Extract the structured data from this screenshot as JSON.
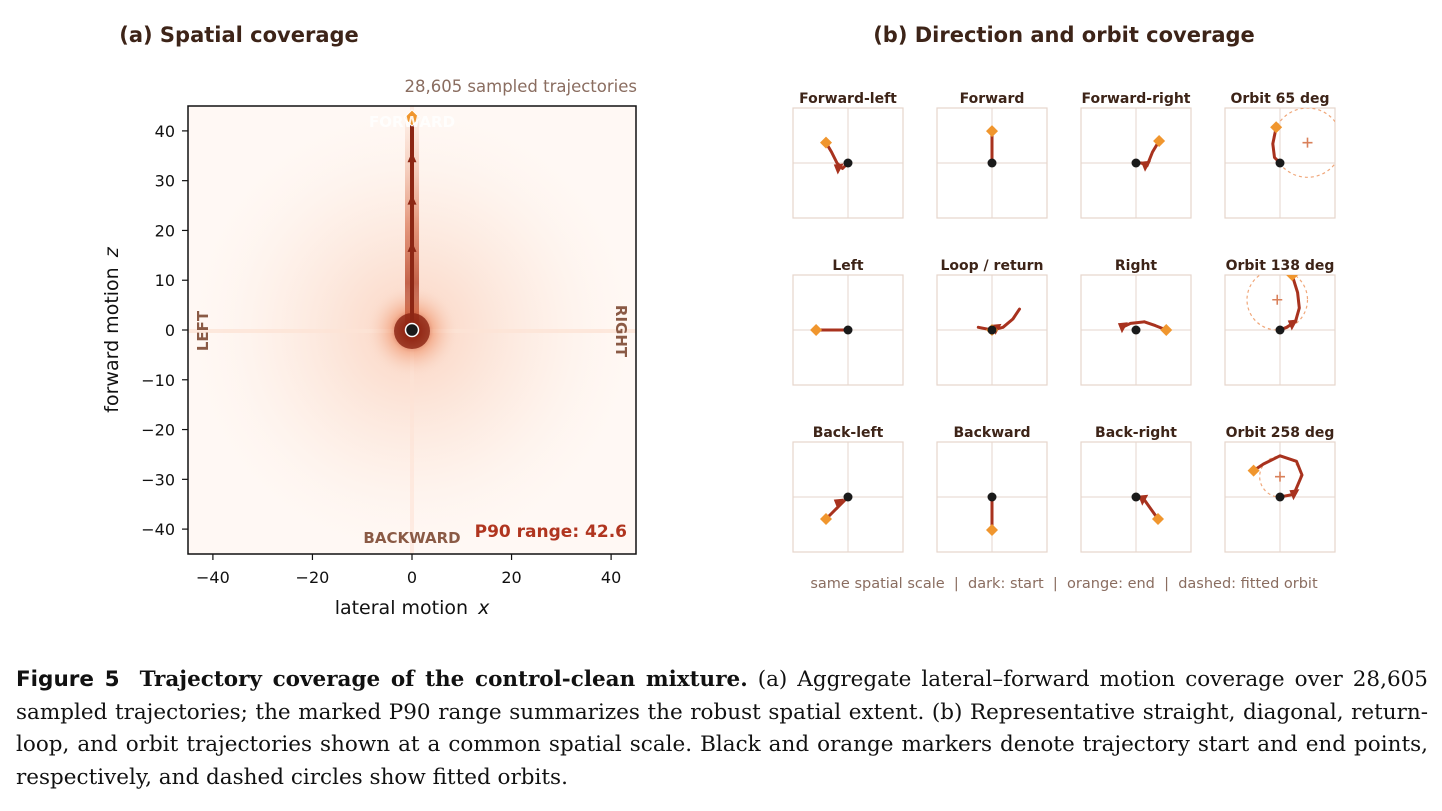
{
  "panel_a": {
    "title": "(a) Spatial coverage",
    "subtitle": "28,605 sampled trajectories",
    "xlabel": "lateral motion",
    "xlabel_var": "x",
    "ylabel": "forward motion",
    "ylabel_var": "z",
    "labels": {
      "forward": "FORWARD",
      "backward": "BACKWARD",
      "left": "LEFT",
      "right": "RIGHT"
    },
    "p90_text": "P90 range: 42.6"
  },
  "panel_b": {
    "title": "(b) Direction and orbit coverage",
    "footer": "same spatial scale  |  dark: start  |  orange: end  |  dashed: fitted orbit"
  },
  "colors": {
    "path": "#a8321e",
    "end": "#f0962e",
    "start": "#1a1a1a",
    "label": "#8a5a45",
    "grid": "#e6d5cc",
    "p90": "#b0351f"
  },
  "chart_data": [
    {
      "type": "heatmap",
      "title": "(a) Spatial coverage",
      "subtitle": "28,605 sampled trajectories",
      "xlabel": "lateral motion x",
      "ylabel": "forward motion z",
      "xlim": [
        -45,
        45
      ],
      "ylim": [
        -45,
        45
      ],
      "xticks": [
        "−40",
        "−20",
        "0",
        "20",
        "40"
      ],
      "yticks": [
        "40",
        "30",
        "20",
        "10",
        "0",
        "−10",
        "−20",
        "−30",
        "−40"
      ],
      "xtick_values": [
        -40,
        -20,
        0,
        20,
        40
      ],
      "ytick_values": [
        40,
        30,
        20,
        10,
        0,
        -10,
        -20,
        -30,
        -40
      ],
      "highlight_path": {
        "start": [
          0,
          0
        ],
        "end": [
          0,
          42.6
        ],
        "arrow_z": [
          16.5,
          26,
          34.5
        ]
      },
      "p90_range": 42.6
    },
    {
      "type": "scatter",
      "title": "(b) Direction and orbit coverage",
      "axis_range": [
        -1,
        1
      ],
      "panels": [
        {
          "title": "Forward-left",
          "start": [
            0,
            0
          ],
          "end": [
            -0.4,
            0.37
          ],
          "path": [
            [
              0,
              0
            ],
            [
              -0.1,
              -0.1
            ],
            [
              -0.2,
              0
            ],
            [
              -0.3,
              0.2
            ],
            [
              -0.4,
              0.37
            ]
          ],
          "arrow": [
            -0.15,
            -0.1
          ],
          "orbit": null
        },
        {
          "title": "Forward",
          "start": [
            0,
            0
          ],
          "end": [
            0,
            0.58
          ],
          "path": [
            [
              0,
              0
            ],
            [
              0,
              0.3
            ],
            [
              0,
              0.58
            ]
          ],
          "arrow": null,
          "orbit": null
        },
        {
          "title": "Forward-right",
          "start": [
            0,
            0
          ],
          "end": [
            0.42,
            0.4
          ],
          "path": [
            [
              0,
              0
            ],
            [
              0.1,
              0
            ],
            [
              0.2,
              -0.05
            ],
            [
              0.3,
              0.2
            ],
            [
              0.42,
              0.4
            ]
          ],
          "arrow": [
            0.2,
            -0.05
          ],
          "orbit": null
        },
        {
          "title": "Orbit 65 deg",
          "start": [
            0,
            0
          ],
          "end": [
            -0.07,
            0.65
          ],
          "path": [
            [
              0,
              0
            ],
            [
              -0.1,
              0.1
            ],
            [
              -0.13,
              0.35
            ],
            [
              -0.07,
              0.65
            ]
          ],
          "arrow": null,
          "orbit": {
            "center": [
              0.5,
              0.37
            ],
            "r": 0.63
          }
        },
        {
          "title": "Left",
          "start": [
            0,
            0
          ],
          "end": [
            -0.58,
            0
          ],
          "path": [
            [
              0,
              0
            ],
            [
              -0.58,
              0
            ]
          ],
          "arrow": null,
          "orbit": null
        },
        {
          "title": "Loop / return",
          "start": [
            0,
            0
          ],
          "end": [
            0,
            0
          ],
          "path": [
            [
              -0.25,
              0.05
            ],
            [
              0,
              0
            ],
            [
              0.2,
              0.05
            ],
            [
              0.38,
              0.2
            ],
            [
              0.5,
              0.38
            ]
          ],
          "arrow": [
            0.1,
            0.02
          ],
          "orbit": null
        },
        {
          "title": "Right",
          "start": [
            0,
            0
          ],
          "end": [
            0.55,
            0
          ],
          "path": [
            [
              -0.25,
              0.05
            ],
            [
              -0.1,
              0.12
            ],
            [
              0.15,
              0.15
            ],
            [
              0.35,
              0.08
            ],
            [
              0.55,
              0
            ]
          ],
          "arrow": [
            -0.22,
            0.05
          ],
          "orbit": null
        },
        {
          "title": "Orbit 138 deg",
          "start": [
            0,
            0
          ],
          "end": [
            0.22,
            1.0
          ],
          "path": [
            [
              0,
              0
            ],
            [
              0.12,
              0.05
            ],
            [
              0.28,
              0.15
            ],
            [
              0.35,
              0.4
            ],
            [
              0.32,
              0.68
            ],
            [
              0.22,
              1.0
            ]
          ],
          "arrow": [
            0.25,
            0.1
          ],
          "orbit": {
            "center": [
              -0.05,
              0.55
            ],
            "r": 0.55
          }
        },
        {
          "title": "Back-left",
          "start": [
            0,
            0
          ],
          "end": [
            -0.4,
            -0.4
          ],
          "path": [
            [
              0,
              0
            ],
            [
              -0.4,
              -0.4
            ]
          ],
          "arrow": [
            -0.15,
            -0.12
          ],
          "orbit": null
        },
        {
          "title": "Backward",
          "start": [
            0,
            0
          ],
          "end": [
            0,
            -0.6
          ],
          "path": [
            [
              0,
              0
            ],
            [
              0,
              -0.55
            ]
          ],
          "arrow": null,
          "orbit": null
        },
        {
          "title": "Back-right",
          "start": [
            0,
            0
          ],
          "end": [
            0.4,
            -0.4
          ],
          "path": [
            [
              0,
              0
            ],
            [
              0.15,
              -0.05
            ],
            [
              0.4,
              -0.4
            ]
          ],
          "arrow": [
            0.15,
            -0.05
          ],
          "orbit": null
        },
        {
          "title": "Orbit 258 deg",
          "start": [
            0,
            0
          ],
          "end": [
            -0.48,
            0.48
          ],
          "path": [
            [
              0,
              0
            ],
            [
              0.25,
              0.05
            ],
            [
              0.4,
              0.4
            ],
            [
              0.3,
              0.65
            ],
            [
              0,
              0.75
            ],
            [
              -0.3,
              0.6
            ],
            [
              -0.48,
              0.48
            ]
          ],
          "arrow": [
            0.28,
            0.05
          ],
          "orbit": {
            "center": [
              0,
              0.37
            ],
            "r": 0.37
          }
        }
      ]
    }
  ],
  "caption": {
    "label": "Figure 5",
    "title": "Trajectory coverage of the control-clean mixture.",
    "body": "(a) Aggregate lateral–forward motion coverage over 28,605 sampled trajectories; the marked P90 range summarizes the robust spatial extent. (b) Representative straight, diagonal, return-loop, and orbit trajectories shown at a common spatial scale. Black and orange markers denote trajectory start and end points, respectively, and dashed circles show fitted orbits."
  }
}
